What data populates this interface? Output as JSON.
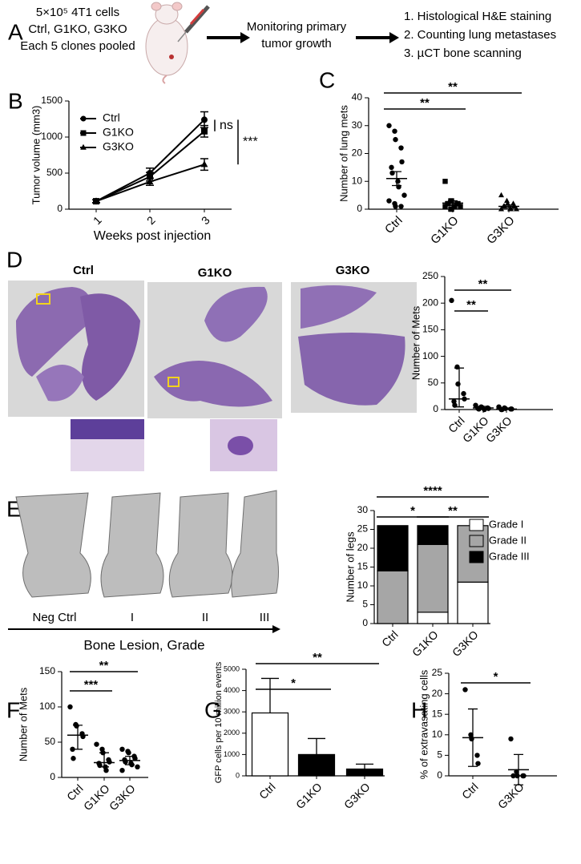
{
  "panel_letters": [
    "A",
    "B",
    "C",
    "D",
    "E",
    "F",
    "G",
    "H"
  ],
  "schematic": {
    "injection": [
      "5×10⁵ 4T1 cells",
      "Ctrl, G1KO, G3KO",
      "Each 5 clones pooled"
    ],
    "monitoring": [
      "Monitoring primary",
      "tumor growth"
    ],
    "readouts": [
      "1. Histological H&E staining",
      "2. Counting lung metastases",
      "3. µCT bone scanning"
    ]
  },
  "histology": {
    "groups": [
      "Ctrl",
      "G1KO",
      "G3KO"
    ]
  },
  "bone": {
    "grades": [
      "Neg Ctrl",
      "I",
      "II",
      "III"
    ],
    "axis_label": "Bone Lesion, Grade"
  },
  "chart_data": [
    {
      "type": "line",
      "ylabel": "Tumor volume (mm3)",
      "xlabel": "Weeks post injection",
      "categories": [
        "1",
        "2",
        "3"
      ],
      "ylim": [
        0,
        1500
      ],
      "yticks": [
        0,
        500,
        1000,
        1500
      ],
      "series": [
        {
          "name": "Ctrl",
          "color": "#000000",
          "marker": "circle",
          "values": [
            110,
            500,
            1240
          ],
          "errors": [
            20,
            70,
            110
          ]
        },
        {
          "name": "G1KO",
          "color": "#000000",
          "marker": "square",
          "values": [
            110,
            450,
            1080
          ],
          "errors": [
            20,
            60,
            80
          ]
        },
        {
          "name": "G3KO",
          "color": "#000000",
          "marker": "triangle",
          "values": [
            110,
            380,
            620
          ],
          "errors": [
            20,
            50,
            80
          ]
        }
      ],
      "annotations": [
        {
          "text": "ns",
          "between": [
            "Ctrl",
            "G1KO"
          ]
        },
        {
          "text": "***",
          "between": [
            "Ctrl",
            "G3KO"
          ]
        }
      ]
    },
    {
      "type": "dotplot",
      "ylabel": "Number of lung mets",
      "categories": [
        "Ctrl",
        "G1KO",
        "G3KO"
      ],
      "ylim": [
        0,
        40
      ],
      "yticks": [
        0,
        10,
        20,
        30,
        40
      ],
      "color": "#000000",
      "markers": [
        "circle",
        "square",
        "triangle"
      ],
      "points": [
        [
          30,
          28,
          25,
          22,
          17,
          15,
          13,
          10,
          8,
          5,
          3,
          2,
          1,
          1
        ],
        [
          10,
          3,
          3,
          2,
          2,
          2,
          2,
          1,
          1,
          1,
          1,
          0,
          0
        ],
        [
          5,
          3,
          2,
          2,
          1,
          1,
          1,
          0,
          0,
          0,
          0
        ]
      ],
      "center": [
        11,
        2.2,
        1
      ],
      "error": [
        2.5,
        0.8,
        0.5
      ],
      "annotations": [
        {
          "text": "**",
          "between": [
            "Ctrl",
            "G3KO"
          ]
        },
        {
          "text": "**",
          "between": [
            "Ctrl",
            "G1KO"
          ]
        }
      ]
    },
    {
      "type": "dotplot",
      "ylabel": "Number of Mets",
      "categories": [
        "Ctrl",
        "G1KO",
        "G3KO"
      ],
      "ylim": [
        0,
        250
      ],
      "yticks": [
        0,
        50,
        100,
        150,
        200,
        250
      ],
      "color": "#000000",
      "points": [
        [
          205,
          80,
          48,
          30,
          20,
          15,
          8
        ],
        [
          8,
          5,
          4,
          3,
          2,
          2,
          1,
          0
        ],
        [
          5,
          3,
          2,
          1,
          1,
          0,
          0
        ]
      ],
      "center": [
        20,
        3,
        1
      ],
      "low": [
        5,
        1,
        0
      ],
      "high": [
        78,
        6,
        3
      ],
      "annotations": [
        {
          "text": "**",
          "between": [
            "Ctrl",
            "G3KO"
          ]
        },
        {
          "text": "**",
          "between": [
            "Ctrl",
            "G1KO"
          ]
        }
      ]
    },
    {
      "type": "stacked_bar",
      "ylabel": "Number of legs",
      "categories": [
        "Ctrl",
        "G1KO",
        "G3KO"
      ],
      "ylim": [
        0,
        30
      ],
      "yticks": [
        0,
        5,
        10,
        15,
        20,
        25,
        30
      ],
      "series": [
        {
          "name": "Grade I",
          "color": "#ffffff",
          "values": [
            0,
            3,
            11
          ]
        },
        {
          "name": "Grade II",
          "color": "#a6a6a6",
          "values": [
            14,
            18,
            15
          ]
        },
        {
          "name": "Grade III",
          "color": "#000000",
          "values": [
            12,
            5,
            0
          ]
        }
      ],
      "annotations": [
        {
          "text": "****",
          "between": [
            "Ctrl",
            "G3KO"
          ]
        },
        {
          "text": "*",
          "between": [
            "Ctrl",
            "G1KO"
          ]
        },
        {
          "text": "**",
          "between": [
            "G1KO",
            "G3KO"
          ]
        }
      ]
    },
    {
      "type": "dotplot",
      "ylabel": "Number of Mets",
      "categories": [
        "Ctrl",
        "G1KO",
        "G3KO"
      ],
      "ylim": [
        0,
        150
      ],
      "yticks": [
        0,
        50,
        100,
        150
      ],
      "color": "#000000",
      "points": [
        [
          100,
          75,
          73,
          62,
          58,
          40,
          27
        ],
        [
          47,
          40,
          35,
          25,
          22,
          20,
          17,
          15,
          10
        ],
        [
          40,
          37,
          35,
          30,
          27,
          25,
          22,
          20,
          18,
          15,
          10
        ]
      ],
      "center": [
        60,
        21,
        24
      ],
      "low": [
        40,
        15,
        18
      ],
      "high": [
        74,
        35,
        30
      ],
      "annotations": [
        {
          "text": "**",
          "between": [
            "Ctrl",
            "G3KO"
          ]
        },
        {
          "text": "***",
          "between": [
            "Ctrl",
            "G1KO"
          ]
        }
      ]
    },
    {
      "type": "bar",
      "ylabel": "GFP cells per 10 million events",
      "categories": [
        "Ctrl",
        "G1KO",
        "G3KO"
      ],
      "ylim": [
        0,
        5000
      ],
      "yticks": [
        0,
        1000,
        2000,
        3000,
        4000,
        5000
      ],
      "values": [
        2950,
        1000,
        320
      ],
      "errors": [
        1620,
        750,
        230
      ],
      "colors": [
        "#ffffff",
        "#000000",
        "#000000"
      ],
      "annotations": [
        {
          "text": "**",
          "between": [
            "Ctrl",
            "G3KO"
          ]
        },
        {
          "text": "*",
          "between": [
            "Ctrl",
            "G1KO"
          ]
        }
      ]
    },
    {
      "type": "dotplot",
      "ylabel": "% of extravasating cells",
      "categories": [
        "Ctrl",
        "G3KO"
      ],
      "ylim": [
        0,
        25
      ],
      "yticks": [
        0,
        5,
        10,
        15,
        20,
        25
      ],
      "color": "#000000",
      "points": [
        [
          21,
          10,
          9,
          5,
          3
        ],
        [
          9,
          1,
          0,
          0,
          0,
          0
        ]
      ],
      "center": [
        9.3,
        1.5
      ],
      "error": [
        7,
        3.7
      ],
      "annotations": [
        {
          "text": "*",
          "between": [
            "Ctrl",
            "G3KO"
          ]
        }
      ]
    }
  ]
}
